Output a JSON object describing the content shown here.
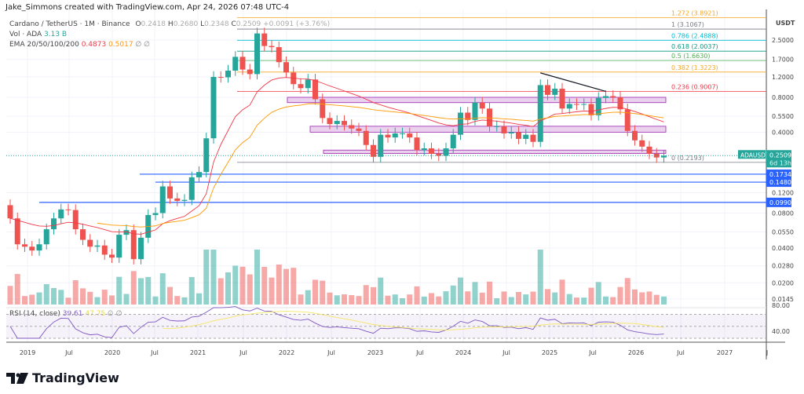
{
  "credit": "Jake_Simmons created with TradingView.com, Apr 24, 2026 07:48 UTC-4",
  "symbol_title": "Cardano / TetherUS · 1M · Binance",
  "ohlc": {
    "o_label": "O",
    "o": "0.2418",
    "h_label": "H",
    "h": "0.2680",
    "l_label": "L",
    "l": "0.2348",
    "c_label": "C",
    "c": "0.2509",
    "change": "+0.0091 (+3.76%)"
  },
  "volume": {
    "label": "Vol · ADA",
    "value": "3.13 B"
  },
  "ema": {
    "label": "EMA 20/50/100/200",
    "v20": "0.4873",
    "v50": "0.5017",
    "v100": "∅",
    "v200": "∅"
  },
  "rsi": {
    "label": "RSI (14, close)",
    "value": "39.61",
    "ma": "47.75",
    "extra": "∅ ∅",
    "ticks": [
      "80.00",
      "40.00"
    ]
  },
  "axis": {
    "currency": "USDT",
    "price_ticks": [
      "2.5000",
      "1.7000",
      "1.2000",
      "0.8000",
      "0.5500",
      "0.4000",
      "0.1200",
      "0.0800",
      "0.0550",
      "0.0400",
      "0.0280",
      "0.0200",
      "0.0145"
    ],
    "time_ticks": [
      "2019",
      "Jul",
      "2020",
      "Jul",
      "2021",
      "Jul",
      "2022",
      "Jul",
      "2023",
      "Jul",
      "2024",
      "Jul",
      "2025",
      "Jul",
      "2026",
      "Jul",
      "2027",
      "J"
    ]
  },
  "price_tag": {
    "symbol": "ADAUSDT",
    "price": "0.2509",
    "countdown": "6d 13h"
  },
  "levels": [
    {
      "label": "0.1734",
      "value": 0.1734
    },
    {
      "label": "0.1480",
      "value": 0.148
    },
    {
      "label": "0.0990",
      "value": 0.099
    }
  ],
  "fib": [
    {
      "label": "1.272 (3.8921)",
      "value": 3.8921,
      "color": "#f5a623"
    },
    {
      "label": "1 (3.1067)",
      "value": 3.1067,
      "color": "#787b86"
    },
    {
      "label": "0.786 (2.4888)",
      "value": 2.4888,
      "color": "#00bcd4"
    },
    {
      "label": "0.618 (2.0037)",
      "value": 2.0037,
      "color": "#089981"
    },
    {
      "label": "0.5 (1.6630)",
      "value": 1.663,
      "color": "#4caf50"
    },
    {
      "label": "0.382 (1.3223)",
      "value": 1.3223,
      "color": "#f5a623"
    },
    {
      "label": "0.236 (0.9007)",
      "value": 0.9007,
      "color": "#f23645"
    },
    {
      "label": "0 (0.2193)",
      "value": 0.2193,
      "color": "#787b86"
    }
  ],
  "colors": {
    "up": "#26a69a",
    "down": "#ef5350",
    "level": "#2962ff",
    "zone": "#e1bee7",
    "ema20": "#f23645",
    "ema50": "#ff9800",
    "rsi": "#7e57c2",
    "rsi_ma": "#f5e663"
  },
  "chart_data": {
    "type": "candlestick",
    "interval": "1M",
    "scale": "log",
    "start": "2018-10",
    "closes": [
      0.072,
      0.043,
      0.041,
      0.038,
      0.043,
      0.058,
      0.072,
      0.086,
      0.085,
      0.058,
      0.047,
      0.041,
      0.042,
      0.035,
      0.033,
      0.052,
      0.057,
      0.032,
      0.049,
      0.077,
      0.08,
      0.136,
      0.107,
      0.102,
      0.104,
      0.163,
      0.181,
      0.354,
      1.2,
      1.19,
      1.36,
      1.79,
      1.39,
      1.27,
      2.85,
      2.22,
      2.17,
      1.61,
      1.31,
      1.04,
      0.96,
      1.14,
      0.77,
      0.53,
      0.47,
      0.5,
      0.46,
      0.43,
      0.41,
      0.31,
      0.245,
      0.38,
      0.36,
      0.39,
      0.39,
      0.36,
      0.28,
      0.29,
      0.26,
      0.25,
      0.29,
      0.38,
      0.59,
      0.51,
      0.72,
      0.64,
      0.45,
      0.45,
      0.39,
      0.4,
      0.35,
      0.38,
      0.33,
      1.02,
      0.84,
      0.95,
      0.64,
      0.7,
      0.69,
      0.7,
      0.56,
      0.79,
      0.82,
      0.8,
      0.63,
      0.41,
      0.34,
      0.3,
      0.26,
      0.2418,
      0.2509
    ],
    "zones": [
      [
        0.72,
        0.8
      ],
      [
        0.4,
        0.45
      ],
      [
        0.262,
        0.28
      ]
    ],
    "trendline": [
      [
        "2024-11",
        1.3
      ],
      [
        "2025-08",
        0.9
      ]
    ]
  },
  "brand": "TradingView"
}
